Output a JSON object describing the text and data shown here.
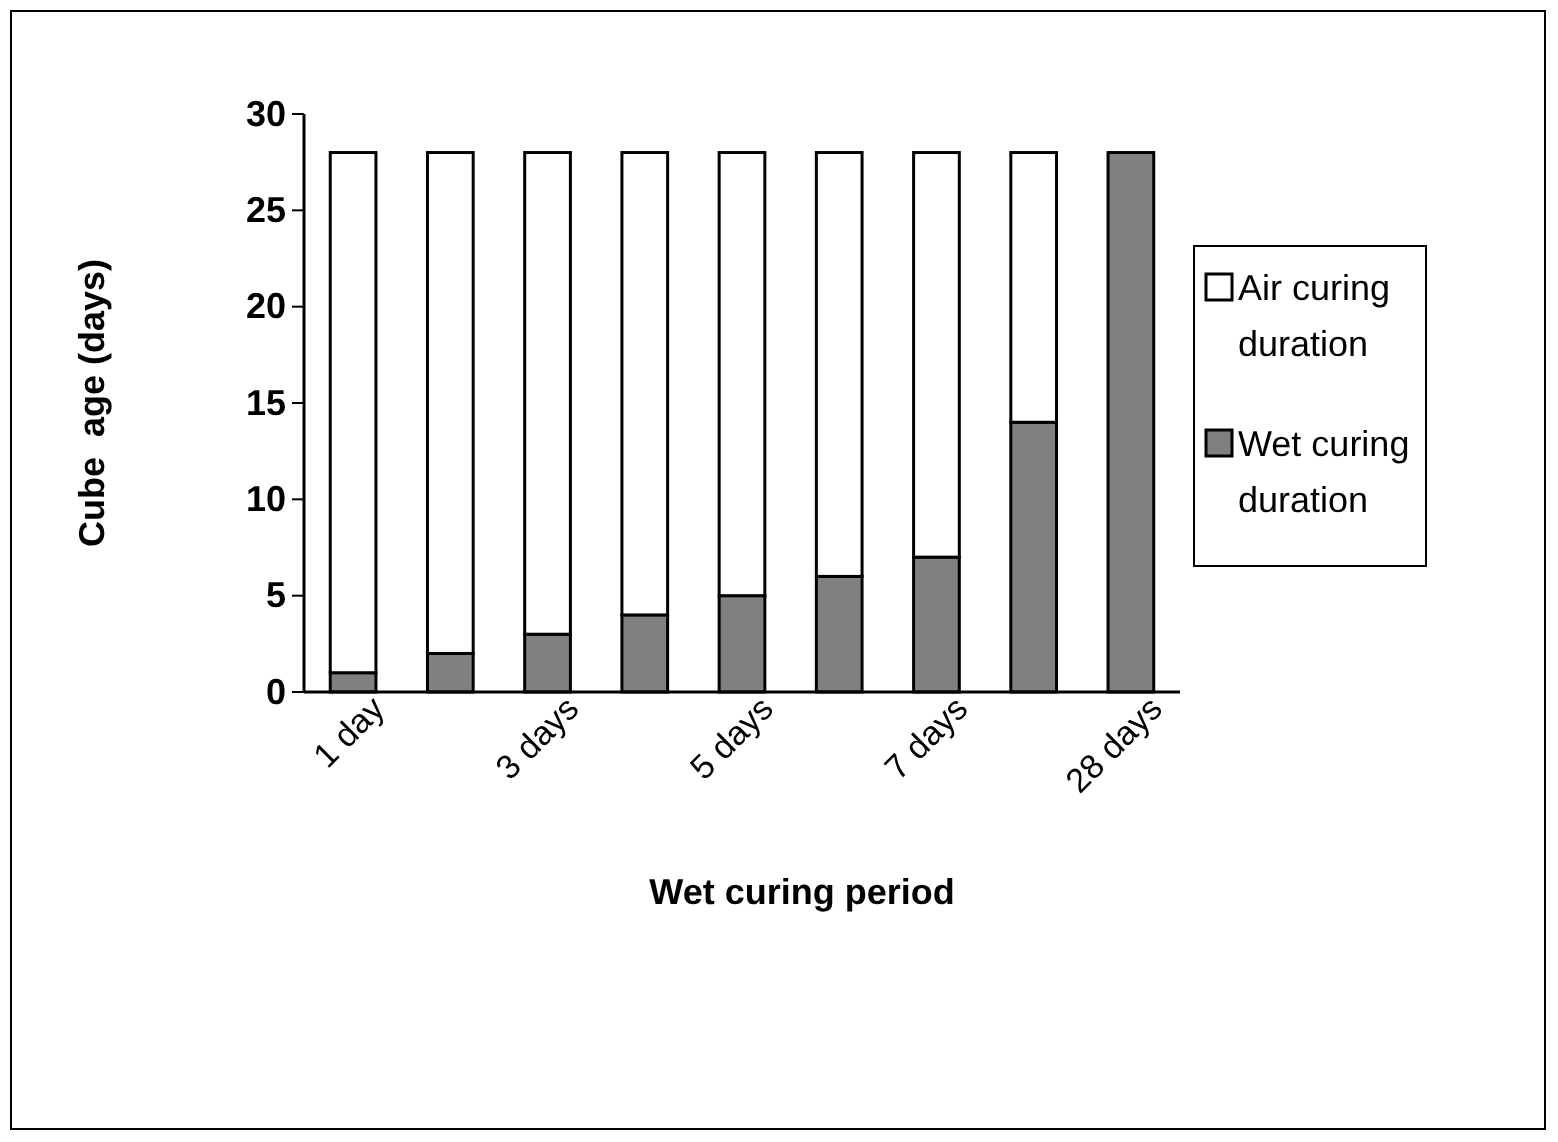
{
  "chart_data": {
    "type": "bar",
    "stacked": true,
    "xlabel": "Wet curing period",
    "ylabel": "Cube  age (days)",
    "categories": [
      "1 day",
      null,
      "3 days",
      null,
      "5 days",
      null,
      "7 days",
      null,
      "28 days"
    ],
    "series": [
      {
        "name": "Wet curing duration",
        "color": "#808080",
        "values": [
          1,
          2,
          3,
          4,
          5,
          6,
          7,
          14,
          28
        ]
      },
      {
        "name": "Air curing duration",
        "color": "#ffffff",
        "values": [
          27,
          26,
          25,
          24,
          23,
          22,
          21,
          14,
          0
        ]
      }
    ],
    "ylim": [
      0,
      30
    ],
    "yticks": [
      0,
      5,
      10,
      15,
      20,
      25,
      30
    ],
    "grid": false,
    "legend": "right"
  }
}
